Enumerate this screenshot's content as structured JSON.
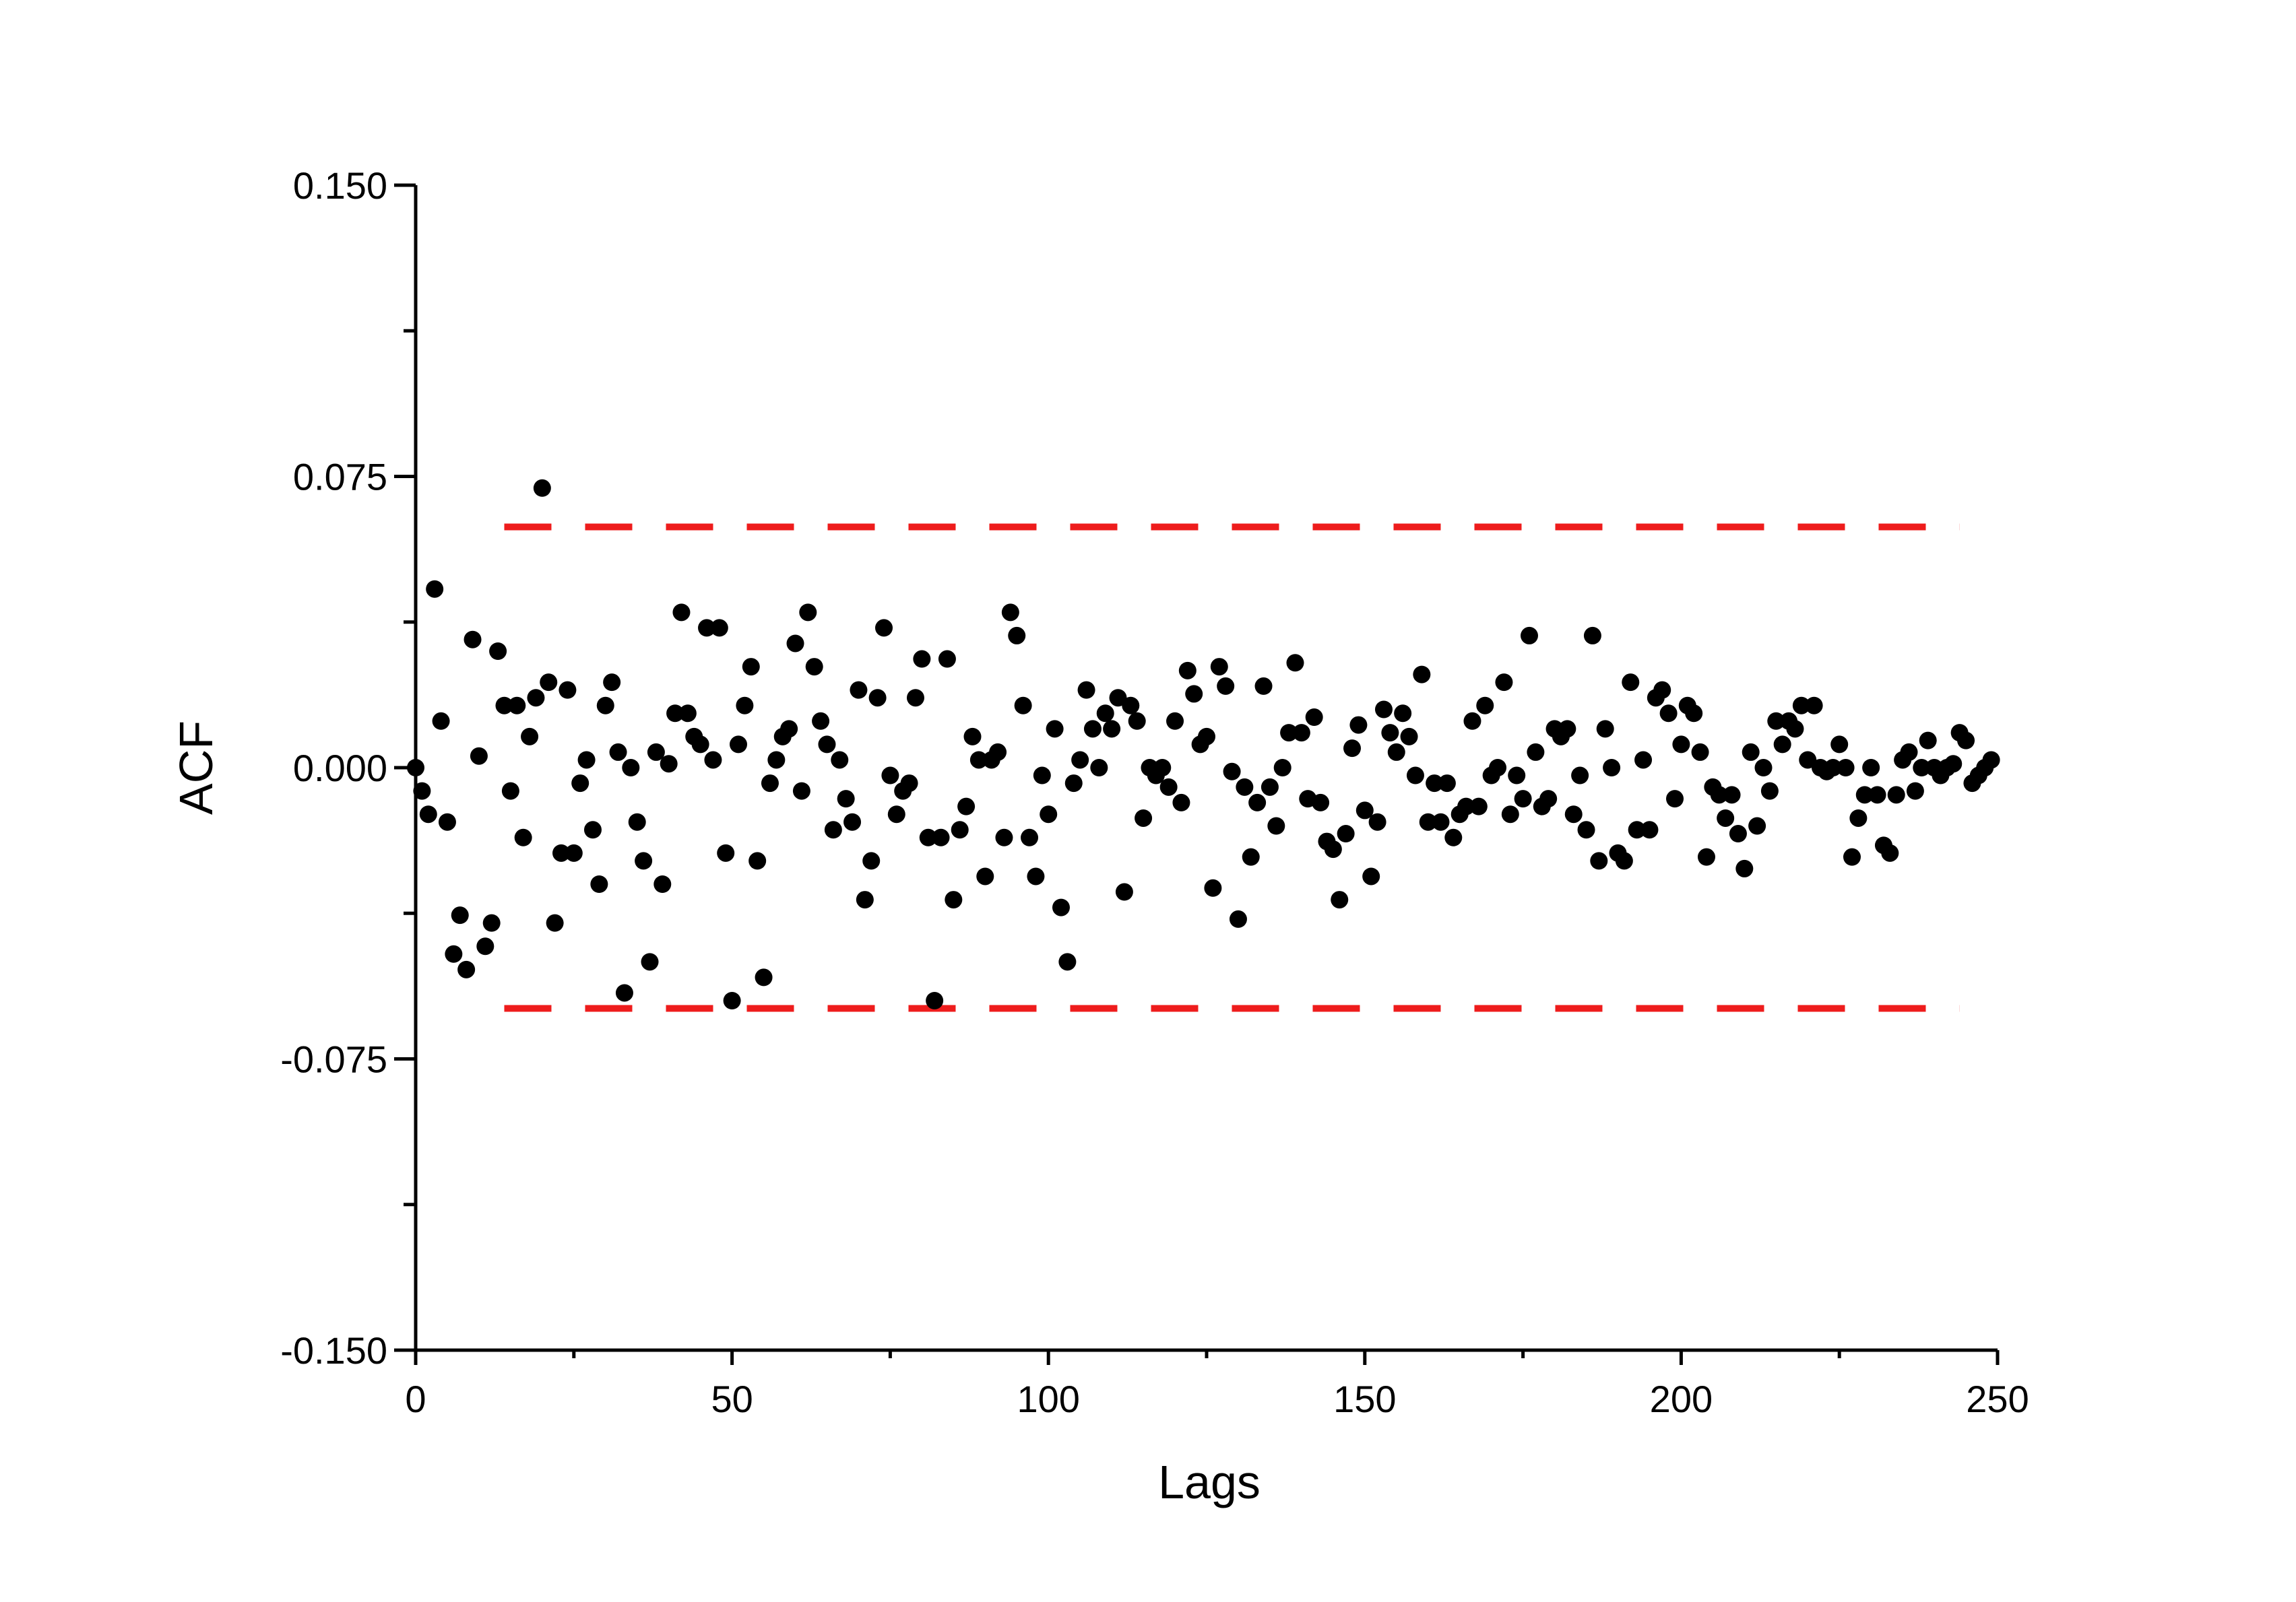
{
  "chart_data": {
    "type": "scatter",
    "title": "",
    "xlabel": "Lags",
    "ylabel": "ACF",
    "xlim": [
      0,
      250
    ],
    "ylim": [
      -0.15,
      0.15
    ],
    "xticks": [
      0,
      50,
      100,
      150,
      200,
      250
    ],
    "xtick_labels": [
      "0",
      "50",
      "100",
      "150",
      "200",
      "250"
    ],
    "yticks": [
      -0.15,
      -0.075,
      0,
      0.075,
      0.15
    ],
    "ytick_labels": [
      "-0.150",
      "-0.075",
      "0.000",
      "0.075",
      "0.150"
    ],
    "grid": false,
    "legend": "none",
    "confidence_bounds": {
      "upper": 0.062,
      "lower": -0.062,
      "style": "dashed",
      "color": "#ee1c1c",
      "x_range": [
        14,
        244
      ]
    },
    "marker_color": "#000000",
    "x": [
      0,
      1,
      2,
      3,
      4,
      5,
      6,
      7,
      8,
      9,
      10,
      11,
      12,
      13,
      14,
      15,
      16,
      17,
      18,
      19,
      20,
      21,
      22,
      23,
      24,
      25,
      26,
      27,
      28,
      29,
      30,
      31,
      32,
      33,
      34,
      35,
      36,
      37,
      38,
      39,
      40,
      41,
      42,
      43,
      44,
      45,
      46,
      47,
      48,
      49,
      50,
      51,
      52,
      53,
      54,
      55,
      56,
      57,
      58,
      59,
      60,
      61,
      62,
      63,
      64,
      65,
      66,
      67,
      68,
      69,
      70,
      71,
      72,
      73,
      74,
      75,
      76,
      77,
      78,
      79,
      80,
      81,
      82,
      83,
      84,
      85,
      86,
      87,
      88,
      89,
      90,
      91,
      92,
      93,
      94,
      95,
      96,
      97,
      98,
      99,
      100,
      101,
      102,
      103,
      104,
      105,
      106,
      107,
      108,
      109,
      110,
      111,
      112,
      113,
      114,
      115,
      116,
      117,
      118,
      119,
      120,
      121,
      122,
      123,
      124,
      125,
      126,
      127,
      128,
      129,
      130,
      131,
      132,
      133,
      134,
      135,
      136,
      137,
      138,
      139,
      140,
      141,
      142,
      143,
      144,
      145,
      146,
      147,
      148,
      149,
      150,
      151,
      152,
      153,
      154,
      155,
      156,
      157,
      158,
      159,
      160,
      161,
      162,
      163,
      164,
      165,
      166,
      167,
      168,
      169,
      170,
      171,
      172,
      173,
      174,
      175,
      176,
      177,
      178,
      179,
      180,
      181,
      182,
      183,
      184,
      185,
      186,
      187,
      188,
      189,
      190,
      191,
      192,
      193,
      194,
      195,
      196,
      197,
      198,
      199,
      200,
      201,
      202,
      203,
      204,
      205,
      206,
      207,
      208,
      209,
      210,
      211,
      212,
      213,
      214,
      215,
      216,
      217,
      218,
      219,
      220,
      221,
      222,
      223,
      224,
      225,
      226,
      227,
      228,
      229,
      230,
      231,
      232,
      233,
      234,
      235,
      236,
      237,
      238,
      239,
      240,
      241,
      242,
      243,
      244,
      245,
      246,
      247,
      248,
      249
    ],
    "y": [
      0.0,
      -0.006,
      -0.012,
      0.046,
      0.012,
      -0.014,
      -0.048,
      -0.038,
      -0.052,
      0.033,
      0.003,
      -0.046,
      -0.04,
      0.03,
      0.016,
      -0.006,
      0.016,
      -0.018,
      0.008,
      0.018,
      0.072,
      0.022,
      -0.04,
      -0.022,
      0.02,
      -0.022,
      -0.004,
      0.002,
      -0.016,
      -0.03,
      0.016,
      0.022,
      0.004,
      -0.058,
      0.0,
      -0.014,
      -0.024,
      -0.05,
      0.004,
      -0.03,
      0.001,
      0.014,
      0.04,
      0.014,
      0.008,
      0.006,
      0.036,
      0.002,
      0.036,
      -0.022,
      -0.06,
      0.006,
      0.016,
      0.026,
      -0.024,
      -0.054,
      -0.004,
      0.002,
      0.008,
      0.01,
      0.032,
      -0.006,
      0.04,
      0.026,
      0.012,
      0.006,
      -0.016,
      0.002,
      -0.008,
      -0.014,
      0.02,
      -0.034,
      -0.024,
      0.018,
      0.036,
      -0.002,
      -0.012,
      -0.006,
      -0.004,
      0.018,
      0.028,
      -0.018,
      -0.06,
      -0.018,
      0.028,
      -0.034,
      -0.016,
      -0.01,
      0.008,
      0.002,
      -0.028,
      0.002,
      0.004,
      -0.018,
      0.04,
      0.034,
      0.016,
      -0.018,
      -0.028,
      -0.002,
      -0.012,
      0.01,
      -0.036,
      -0.05,
      -0.004,
      0.002,
      0.02,
      0.01,
      0.0,
      0.014,
      0.01,
      0.018,
      -0.032,
      0.016,
      0.012,
      -0.013,
      0.0,
      -0.002,
      0.0,
      -0.005,
      0.012,
      -0.009,
      0.025,
      0.019,
      0.006,
      0.008,
      -0.031,
      0.026,
      0.021,
      -0.001,
      -0.039,
      -0.005,
      -0.023,
      -0.009,
      0.021,
      -0.005,
      -0.015,
      0.0,
      0.009,
      0.027,
      0.009,
      -0.008,
      0.013,
      -0.009,
      -0.019,
      -0.021,
      -0.034,
      -0.017,
      0.005,
      0.011,
      -0.011,
      -0.028,
      -0.014,
      0.015,
      0.009,
      0.004,
      0.014,
      0.008,
      -0.002,
      0.024,
      -0.014,
      -0.004,
      -0.014,
      -0.004,
      -0.018,
      -0.012,
      -0.01,
      0.012,
      -0.01,
      0.016,
      -0.002,
      0.0,
      0.022,
      -0.012,
      -0.002,
      -0.008,
      0.034,
      0.004,
      -0.01,
      -0.008,
      0.01,
      0.008,
      0.01,
      -0.012,
      -0.002,
      -0.016,
      0.034,
      -0.024,
      0.01,
      0.0,
      -0.022,
      -0.024,
      0.022,
      -0.016,
      0.002,
      -0.016,
      0.018,
      0.02,
      0.014,
      -0.008,
      0.006,
      0.016,
      0.014,
      0.004,
      -0.023,
      -0.005,
      -0.007,
      -0.013,
      -0.007,
      -0.017,
      -0.026,
      0.004,
      -0.015,
      0.0,
      -0.006,
      0.012,
      0.006,
      0.012,
      0.01,
      0.016,
      0.002,
      0.016,
      0.0,
      -0.001,
      0.0,
      0.006,
      0.0,
      -0.023,
      -0.013,
      -0.007,
      0.0,
      -0.007,
      -0.02,
      -0.022,
      -0.007,
      0.002,
      0.004,
      -0.006,
      0.0,
      0.007,
      0.0,
      -0.002,
      0.0,
      0.001,
      0.009,
      0.007,
      -0.004,
      -0.002,
      0.0,
      0.002
    ]
  }
}
